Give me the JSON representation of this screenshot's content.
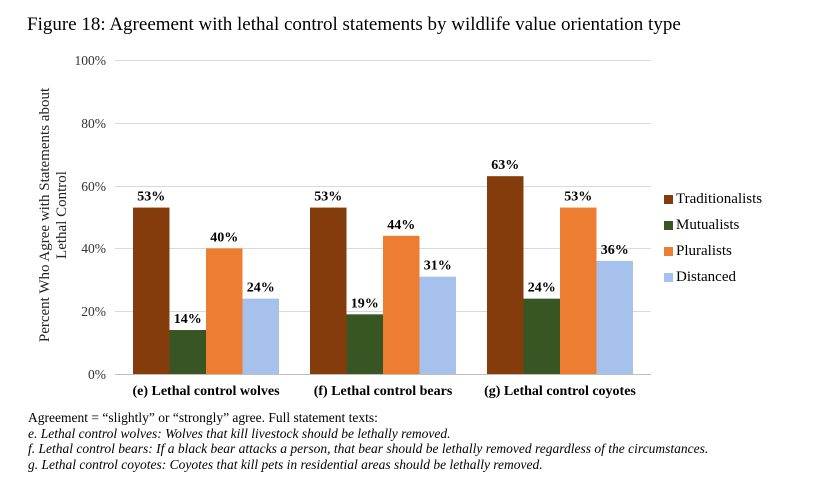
{
  "figure": {
    "title": "Figure 18: Agreement with lethal control statements by wildlife value orientation type"
  },
  "chart_data": {
    "type": "bar",
    "title": "Figure 18: Agreement with lethal control statements by wildlife value orientation type",
    "xlabel": "",
    "ylabel": "Percent Who Agree with Statements about Lethal Control",
    "ylabel_lines": [
      "Percent Who Agree with Statements about",
      "Lethal Control"
    ],
    "ylim": [
      0,
      100
    ],
    "yticks": [
      0,
      20,
      40,
      60,
      80,
      100
    ],
    "ytick_labels": [
      "0%",
      "20%",
      "40%",
      "60%",
      "80%",
      "100%"
    ],
    "grid": true,
    "legend_position": "right",
    "categories": [
      "(e) Lethal control wolves",
      "(f) Lethal control bears",
      "(g) Lethal control coyotes"
    ],
    "series": [
      {
        "name": "Traditionalists",
        "color": "#843C0C",
        "values": [
          53,
          53,
          63
        ],
        "labels": [
          "53%",
          "53%",
          "63%"
        ]
      },
      {
        "name": "Mutualists",
        "color": "#375623",
        "values": [
          14,
          19,
          24
        ],
        "labels": [
          "14%",
          "19%",
          "24%"
        ]
      },
      {
        "name": "Pluralists",
        "color": "#ED7D31",
        "values": [
          40,
          44,
          53
        ],
        "labels": [
          "40%",
          "44%",
          "53%"
        ]
      },
      {
        "name": "Distanced",
        "color": "#A6C2EC",
        "values": [
          24,
          31,
          36
        ],
        "labels": [
          "24%",
          "31%",
          "36%"
        ]
      }
    ]
  },
  "notes": {
    "line1": "Agreement = “slightly” or “strongly” agree. Full statement texts:",
    "line2": "e. Lethal control wolves: Wolves that kill livestock should be lethally removed.",
    "line3": "f. Lethal control bears: If a black bear attacks a person, that bear should be lethally removed regardless of the circumstances.",
    "line4": "g. Lethal control coyotes: Coyotes that kill pets in residential areas should be lethally removed."
  }
}
